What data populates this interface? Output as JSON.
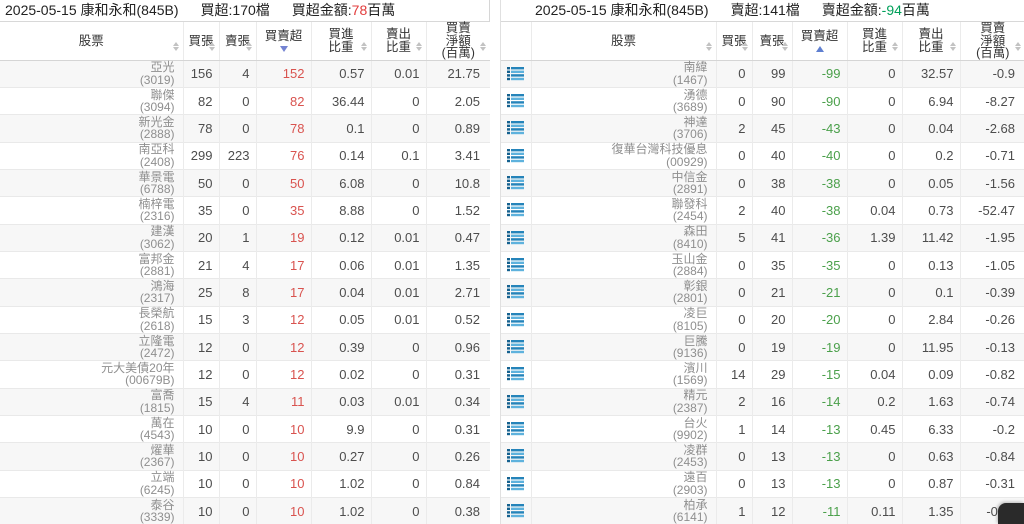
{
  "colors": {
    "buy_red": "#d9534f",
    "sell_green": "#4ba04b",
    "title_red": "#e23b3b",
    "title_green": "#00a05a",
    "icon_blue": "#2e8fc5",
    "sort_active": "#6f86d6"
  },
  "left": {
    "title": {
      "date_broker": "2025-05-15 康和永和(845B)",
      "count": "買超:170檔",
      "amount_prefix": "買超金額:",
      "amount_value": "78",
      "amount_suffix": "百萬"
    },
    "columns": [
      "股票",
      "買張",
      "賣張",
      "買賣超",
      "買進\n比重",
      "賣出\n比重",
      "買賣\n淨額\n(百萬)"
    ],
    "sort": {
      "column": "買賣超",
      "direction": "desc"
    },
    "rows": [
      {
        "name": "亞光",
        "code": "(3019)",
        "buy": "156",
        "sell": "4",
        "net": "152",
        "buy_pct": "0.57",
        "sell_pct": "0.01",
        "net_amt": "21.75"
      },
      {
        "name": "聯傑",
        "code": "(3094)",
        "buy": "82",
        "sell": "0",
        "net": "82",
        "buy_pct": "36.44",
        "sell_pct": "0",
        "net_amt": "2.05"
      },
      {
        "name": "新光金",
        "code": "(2888)",
        "buy": "78",
        "sell": "0",
        "net": "78",
        "buy_pct": "0.1",
        "sell_pct": "0",
        "net_amt": "0.89"
      },
      {
        "name": "南亞科",
        "code": "(2408)",
        "buy": "299",
        "sell": "223",
        "net": "76",
        "buy_pct": "0.14",
        "sell_pct": "0.1",
        "net_amt": "3.41"
      },
      {
        "name": "華景電",
        "code": "(6788)",
        "buy": "50",
        "sell": "0",
        "net": "50",
        "buy_pct": "6.08",
        "sell_pct": "0",
        "net_amt": "10.8"
      },
      {
        "name": "楠梓電",
        "code": "(2316)",
        "buy": "35",
        "sell": "0",
        "net": "35",
        "buy_pct": "8.88",
        "sell_pct": "0",
        "net_amt": "1.52"
      },
      {
        "name": "建漢",
        "code": "(3062)",
        "buy": "20",
        "sell": "1",
        "net": "19",
        "buy_pct": "0.12",
        "sell_pct": "0.01",
        "net_amt": "0.47"
      },
      {
        "name": "富邦金",
        "code": "(2881)",
        "buy": "21",
        "sell": "4",
        "net": "17",
        "buy_pct": "0.06",
        "sell_pct": "0.01",
        "net_amt": "1.35"
      },
      {
        "name": "鴻海",
        "code": "(2317)",
        "buy": "25",
        "sell": "8",
        "net": "17",
        "buy_pct": "0.04",
        "sell_pct": "0.01",
        "net_amt": "2.71"
      },
      {
        "name": "長榮航",
        "code": "(2618)",
        "buy": "15",
        "sell": "3",
        "net": "12",
        "buy_pct": "0.05",
        "sell_pct": "0.01",
        "net_amt": "0.52"
      },
      {
        "name": "立隆電",
        "code": "(2472)",
        "buy": "12",
        "sell": "0",
        "net": "12",
        "buy_pct": "0.39",
        "sell_pct": "0",
        "net_amt": "0.96"
      },
      {
        "name": "元大美債20年",
        "code": "(00679B)",
        "buy": "12",
        "sell": "0",
        "net": "12",
        "buy_pct": "0.02",
        "sell_pct": "0",
        "net_amt": "0.31"
      },
      {
        "name": "富喬",
        "code": "(1815)",
        "buy": "15",
        "sell": "4",
        "net": "11",
        "buy_pct": "0.03",
        "sell_pct": "0.01",
        "net_amt": "0.34"
      },
      {
        "name": "萬在",
        "code": "(4543)",
        "buy": "10",
        "sell": "0",
        "net": "10",
        "buy_pct": "9.9",
        "sell_pct": "0",
        "net_amt": "0.31"
      },
      {
        "name": "燿華",
        "code": "(2367)",
        "buy": "10",
        "sell": "0",
        "net": "10",
        "buy_pct": "0.27",
        "sell_pct": "0",
        "net_amt": "0.26"
      },
      {
        "name": "立端",
        "code": "(6245)",
        "buy": "10",
        "sell": "0",
        "net": "10",
        "buy_pct": "1.02",
        "sell_pct": "0",
        "net_amt": "0.84"
      },
      {
        "name": "泰谷",
        "code": "(3339)",
        "buy": "10",
        "sell": "0",
        "net": "10",
        "buy_pct": "1.02",
        "sell_pct": "0",
        "net_amt": "0.38"
      }
    ]
  },
  "right": {
    "title": {
      "date_broker": "2025-05-15 康和永和(845B)",
      "count": "賣超:141檔",
      "amount_prefix": "賣超金額:",
      "amount_value": "-94",
      "amount_suffix": "百萬"
    },
    "columns": [
      "股票",
      "買張",
      "賣張",
      "買賣超",
      "買進\n比重",
      "賣出\n比重",
      "買賣\n淨額\n(百萬)"
    ],
    "sort": {
      "column": "買賣超",
      "direction": "asc"
    },
    "rows": [
      {
        "name": "南緯",
        "code": "(1467)",
        "buy": "0",
        "sell": "99",
        "net": "-99",
        "buy_pct": "0",
        "sell_pct": "32.57",
        "net_amt": "-0.9"
      },
      {
        "name": "湧德",
        "code": "(3689)",
        "buy": "0",
        "sell": "90",
        "net": "-90",
        "buy_pct": "0",
        "sell_pct": "6.94",
        "net_amt": "-8.27"
      },
      {
        "name": "神達",
        "code": "(3706)",
        "buy": "2",
        "sell": "45",
        "net": "-43",
        "buy_pct": "0",
        "sell_pct": "0.04",
        "net_amt": "-2.68"
      },
      {
        "name": "復華台灣科技優息",
        "code": "(00929)",
        "buy": "0",
        "sell": "40",
        "net": "-40",
        "buy_pct": "0",
        "sell_pct": "0.2",
        "net_amt": "-0.71"
      },
      {
        "name": "中信金",
        "code": "(2891)",
        "buy": "0",
        "sell": "38",
        "net": "-38",
        "buy_pct": "0",
        "sell_pct": "0.05",
        "net_amt": "-1.56"
      },
      {
        "name": "聯發科",
        "code": "(2454)",
        "buy": "2",
        "sell": "40",
        "net": "-38",
        "buy_pct": "0.04",
        "sell_pct": "0.73",
        "net_amt": "-52.47"
      },
      {
        "name": "森田",
        "code": "(8410)",
        "buy": "5",
        "sell": "41",
        "net": "-36",
        "buy_pct": "1.39",
        "sell_pct": "11.42",
        "net_amt": "-1.95"
      },
      {
        "name": "玉山金",
        "code": "(2884)",
        "buy": "0",
        "sell": "35",
        "net": "-35",
        "buy_pct": "0",
        "sell_pct": "0.13",
        "net_amt": "-1.05"
      },
      {
        "name": "彰銀",
        "code": "(2801)",
        "buy": "0",
        "sell": "21",
        "net": "-21",
        "buy_pct": "0",
        "sell_pct": "0.1",
        "net_amt": "-0.39"
      },
      {
        "name": "凌巨",
        "code": "(8105)",
        "buy": "0",
        "sell": "20",
        "net": "-20",
        "buy_pct": "0",
        "sell_pct": "2.84",
        "net_amt": "-0.26"
      },
      {
        "name": "巨騰",
        "code": "(9136)",
        "buy": "0",
        "sell": "19",
        "net": "-19",
        "buy_pct": "0",
        "sell_pct": "11.95",
        "net_amt": "-0.13"
      },
      {
        "name": "濱川",
        "code": "(1569)",
        "buy": "14",
        "sell": "29",
        "net": "-15",
        "buy_pct": "0.04",
        "sell_pct": "0.09",
        "net_amt": "-0.82"
      },
      {
        "name": "精元",
        "code": "(2387)",
        "buy": "2",
        "sell": "16",
        "net": "-14",
        "buy_pct": "0.2",
        "sell_pct": "1.63",
        "net_amt": "-0.74"
      },
      {
        "name": "台火",
        "code": "(9902)",
        "buy": "1",
        "sell": "14",
        "net": "-13",
        "buy_pct": "0.45",
        "sell_pct": "6.33",
        "net_amt": "-0.2"
      },
      {
        "name": "凌群",
        "code": "(2453)",
        "buy": "0",
        "sell": "13",
        "net": "-13",
        "buy_pct": "0",
        "sell_pct": "0.63",
        "net_amt": "-0.84"
      },
      {
        "name": "遠百",
        "code": "(2903)",
        "buy": "0",
        "sell": "13",
        "net": "-13",
        "buy_pct": "0",
        "sell_pct": "0.87",
        "net_amt": "-0.31"
      },
      {
        "name": "柏承",
        "code": "(6141)",
        "buy": "1",
        "sell": "12",
        "net": "-11",
        "buy_pct": "0.11",
        "sell_pct": "1.35",
        "net_amt": "-0.11"
      }
    ]
  }
}
